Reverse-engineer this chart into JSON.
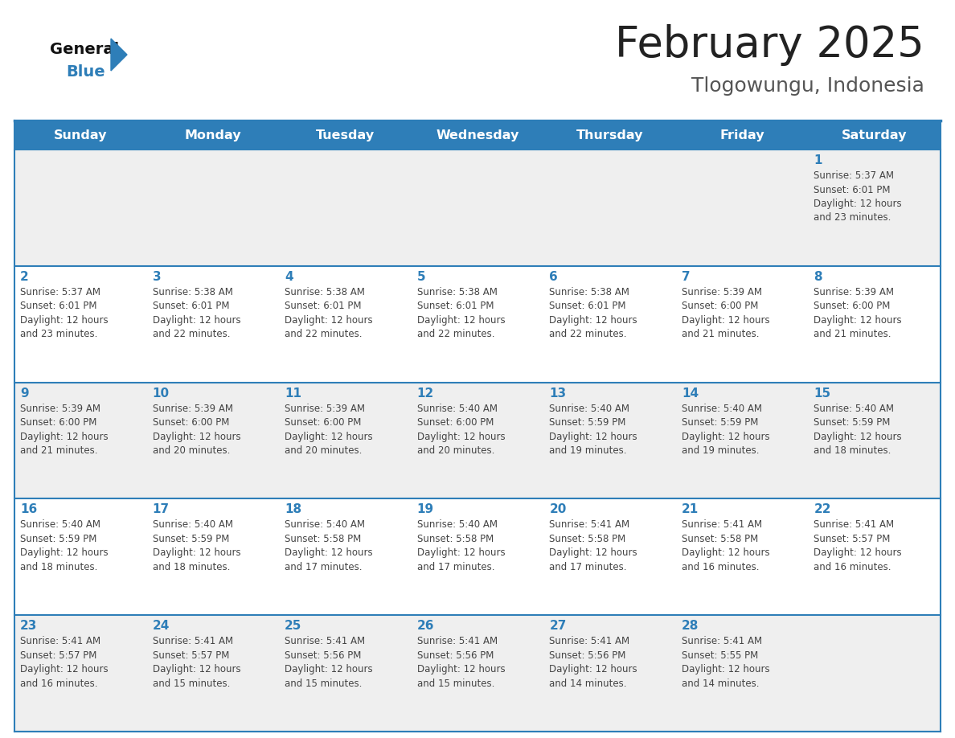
{
  "title": "February 2025",
  "subtitle": "Tlogowungu, Indonesia",
  "days_of_week": [
    "Sunday",
    "Monday",
    "Tuesday",
    "Wednesday",
    "Thursday",
    "Friday",
    "Saturday"
  ],
  "header_bg": "#2E7EB8",
  "header_text": "#FFFFFF",
  "row_bg_first": "#EFEFEF",
  "row_bg_odd": "#FFFFFF",
  "row_bg_even": "#EFEFEF",
  "border_color": "#2E7EB8",
  "text_color": "#444444",
  "day_num_color": "#2E7EB8",
  "title_color": "#222222",
  "subtitle_color": "#555555",
  "logo_text_color": "#111111",
  "logo_blue_color": "#2E7EB8",
  "calendar_data": [
    [
      null,
      null,
      null,
      null,
      null,
      null,
      {
        "day": 1,
        "sunrise": "5:37 AM",
        "sunset": "6:01 PM",
        "daylight": "12 hours and 23 minutes."
      }
    ],
    [
      {
        "day": 2,
        "sunrise": "5:37 AM",
        "sunset": "6:01 PM",
        "daylight": "12 hours and 23 minutes."
      },
      {
        "day": 3,
        "sunrise": "5:38 AM",
        "sunset": "6:01 PM",
        "daylight": "12 hours and 22 minutes."
      },
      {
        "day": 4,
        "sunrise": "5:38 AM",
        "sunset": "6:01 PM",
        "daylight": "12 hours and 22 minutes."
      },
      {
        "day": 5,
        "sunrise": "5:38 AM",
        "sunset": "6:01 PM",
        "daylight": "12 hours and 22 minutes."
      },
      {
        "day": 6,
        "sunrise": "5:38 AM",
        "sunset": "6:01 PM",
        "daylight": "12 hours and 22 minutes."
      },
      {
        "day": 7,
        "sunrise": "5:39 AM",
        "sunset": "6:00 PM",
        "daylight": "12 hours and 21 minutes."
      },
      {
        "day": 8,
        "sunrise": "5:39 AM",
        "sunset": "6:00 PM",
        "daylight": "12 hours and 21 minutes."
      }
    ],
    [
      {
        "day": 9,
        "sunrise": "5:39 AM",
        "sunset": "6:00 PM",
        "daylight": "12 hours and 21 minutes."
      },
      {
        "day": 10,
        "sunrise": "5:39 AM",
        "sunset": "6:00 PM",
        "daylight": "12 hours and 20 minutes."
      },
      {
        "day": 11,
        "sunrise": "5:39 AM",
        "sunset": "6:00 PM",
        "daylight": "12 hours and 20 minutes."
      },
      {
        "day": 12,
        "sunrise": "5:40 AM",
        "sunset": "6:00 PM",
        "daylight": "12 hours and 20 minutes."
      },
      {
        "day": 13,
        "sunrise": "5:40 AM",
        "sunset": "5:59 PM",
        "daylight": "12 hours and 19 minutes."
      },
      {
        "day": 14,
        "sunrise": "5:40 AM",
        "sunset": "5:59 PM",
        "daylight": "12 hours and 19 minutes."
      },
      {
        "day": 15,
        "sunrise": "5:40 AM",
        "sunset": "5:59 PM",
        "daylight": "12 hours and 18 minutes."
      }
    ],
    [
      {
        "day": 16,
        "sunrise": "5:40 AM",
        "sunset": "5:59 PM",
        "daylight": "12 hours and 18 minutes."
      },
      {
        "day": 17,
        "sunrise": "5:40 AM",
        "sunset": "5:59 PM",
        "daylight": "12 hours and 18 minutes."
      },
      {
        "day": 18,
        "sunrise": "5:40 AM",
        "sunset": "5:58 PM",
        "daylight": "12 hours and 17 minutes."
      },
      {
        "day": 19,
        "sunrise": "5:40 AM",
        "sunset": "5:58 PM",
        "daylight": "12 hours and 17 minutes."
      },
      {
        "day": 20,
        "sunrise": "5:41 AM",
        "sunset": "5:58 PM",
        "daylight": "12 hours and 17 minutes."
      },
      {
        "day": 21,
        "sunrise": "5:41 AM",
        "sunset": "5:58 PM",
        "daylight": "12 hours and 16 minutes."
      },
      {
        "day": 22,
        "sunrise": "5:41 AM",
        "sunset": "5:57 PM",
        "daylight": "12 hours and 16 minutes."
      }
    ],
    [
      {
        "day": 23,
        "sunrise": "5:41 AM",
        "sunset": "5:57 PM",
        "daylight": "12 hours and 16 minutes."
      },
      {
        "day": 24,
        "sunrise": "5:41 AM",
        "sunset": "5:57 PM",
        "daylight": "12 hours and 15 minutes."
      },
      {
        "day": 25,
        "sunrise": "5:41 AM",
        "sunset": "5:56 PM",
        "daylight": "12 hours and 15 minutes."
      },
      {
        "day": 26,
        "sunrise": "5:41 AM",
        "sunset": "5:56 PM",
        "daylight": "12 hours and 15 minutes."
      },
      {
        "day": 27,
        "sunrise": "5:41 AM",
        "sunset": "5:56 PM",
        "daylight": "12 hours and 14 minutes."
      },
      {
        "day": 28,
        "sunrise": "5:41 AM",
        "sunset": "5:55 PM",
        "daylight": "12 hours and 14 minutes."
      },
      null
    ]
  ]
}
